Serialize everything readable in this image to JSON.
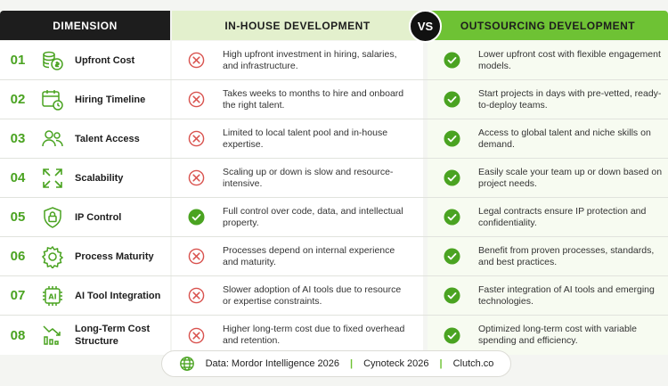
{
  "header": {
    "dimension": "DIMENSION",
    "in_house": "IN-HOUSE DEVELOPMENT",
    "vs": "VS",
    "outsourcing": "OUTSOURCING DEVELOPMENT"
  },
  "colors": {
    "accent": "#6ec234",
    "number": "#4aa321",
    "cross": "#d9534f",
    "check": "#4aa321",
    "dark": "#1d1d1d"
  },
  "rows": [
    {
      "num": "01",
      "icon": "coins-icon",
      "label": "Upfront Cost",
      "in_mark": "cross",
      "in_text": "High upfront investment in hiring, salaries, and infrastructure.",
      "out_mark": "check",
      "out_text": "Lower upfront cost with flexible engagement models."
    },
    {
      "num": "02",
      "icon": "calendar-clock-icon",
      "label": "Hiring Timeline",
      "in_mark": "cross",
      "in_text": "Takes weeks to months to hire and onboard the right talent.",
      "out_mark": "check",
      "out_text": "Start projects in days with pre-vetted, ready-to-deploy teams."
    },
    {
      "num": "03",
      "icon": "users-icon",
      "label": "Talent Access",
      "in_mark": "cross",
      "in_text": "Limited to local talent pool and in-house expertise.",
      "out_mark": "check",
      "out_text": "Access to global talent and niche skills on demand."
    },
    {
      "num": "04",
      "icon": "expand-icon",
      "label": "Scalability",
      "in_mark": "cross",
      "in_text": "Scaling up or down is slow and resource-intensive.",
      "out_mark": "check",
      "out_text": "Easily scale your team up or down based on project needs."
    },
    {
      "num": "05",
      "icon": "shield-lock-icon",
      "label": "IP Control",
      "in_mark": "check",
      "in_text": "Full control over code, data, and intellectual property.",
      "out_mark": "check",
      "out_text": "Legal contracts ensure IP protection and confidentiality."
    },
    {
      "num": "06",
      "icon": "gear-icon",
      "label": "Process Maturity",
      "in_mark": "cross",
      "in_text": "Processes depend on internal experience and maturity.",
      "out_mark": "check",
      "out_text": "Benefit from proven processes, standards, and best practices."
    },
    {
      "num": "07",
      "icon": "ai-chip-icon",
      "label": "AI Tool Integration",
      "in_mark": "cross",
      "in_text": "Slower adoption of AI tools due to resource or expertise constraints.",
      "out_mark": "check",
      "out_text": "Faster integration of AI tools and emerging technologies."
    },
    {
      "num": "08",
      "icon": "chart-down-icon",
      "label": "Long-Term Cost Structure",
      "in_mark": "cross",
      "in_text": "Higher long-term cost due to fixed overhead and retention.",
      "out_mark": "check",
      "out_text": "Optimized long-term cost with variable spending and efficiency."
    }
  ],
  "footer": {
    "icon": "globe-icon",
    "source1": "Data: Mordor Intelligence 2026",
    "source2": "Cynoteck 2026",
    "source3": "Clutch.co"
  }
}
